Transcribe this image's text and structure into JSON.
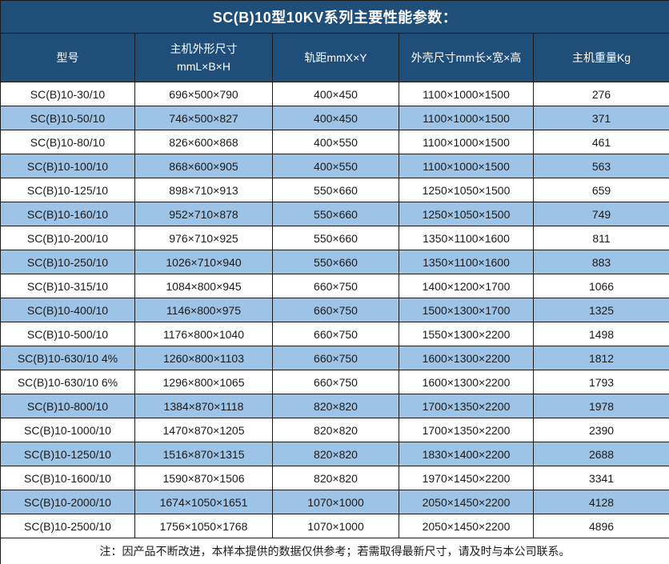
{
  "title": "SC(B)10型10KV系列主要性能参数：",
  "colors": {
    "header_bg": "#1F4E79",
    "alt_row_bg": "#9DC3E6",
    "row_bg": "#FFFFFF",
    "border": "#1A1A1A",
    "header_text": "#FFFFFF",
    "body_text": "#1A1A1A"
  },
  "table": {
    "headers": [
      {
        "label": "型号",
        "sub": ""
      },
      {
        "label": "主机外形尺寸",
        "sub": "mmL×B×H"
      },
      {
        "label": "轨距mmX×Y",
        "sub": ""
      },
      {
        "label": "外壳尺寸mm长×宽×高",
        "sub": ""
      },
      {
        "label": "主机重量Kg",
        "sub": ""
      }
    ],
    "rows": [
      [
        "SC(B)10-30/10",
        "696×500×790",
        "400×450",
        "1100×1000×1500",
        "276"
      ],
      [
        "SC(B)10-50/10",
        "746×500×827",
        "400×450",
        "1100×1000×1500",
        "371"
      ],
      [
        "SC(B)10-80/10",
        "826×600×868",
        "400×550",
        "1100×1000×1500",
        "461"
      ],
      [
        "SC(B)10-100/10",
        "868×600×905",
        "400×550",
        "1100×1000×1500",
        "563"
      ],
      [
        "SC(B)10-125/10",
        "898×710×913",
        "550×660",
        "1250×1050×1500",
        "659"
      ],
      [
        "SC(B)10-160/10",
        "952×710×878",
        "550×660",
        "1250×1050×1500",
        "749"
      ],
      [
        "SC(B)10-200/10",
        "976×710×925",
        "550×660",
        "1350×1100×1600",
        "811"
      ],
      [
        "SC(B)10-250/10",
        "1026×710×940",
        "550×660",
        "1350×1100×1600",
        "883"
      ],
      [
        "SC(B)10-315/10",
        "1084×800×945",
        "660×750",
        "1400×1200×1700",
        "1066"
      ],
      [
        "SC(B)10-400/10",
        "1146×800×975",
        "660×750",
        "1500×1300×1700",
        "1325"
      ],
      [
        "SC(B)10-500/10",
        "1176×800×1040",
        "660×750",
        "1550×1300×2200",
        "1498"
      ],
      [
        "SC(B)10-630/10 4%",
        "1260×800×1103",
        "660×750",
        "1600×1300×2200",
        "1812"
      ],
      [
        "SC(B)10-630/10 6%",
        "1296×800×1065",
        "660×750",
        "1600×1300×2200",
        "1793"
      ],
      [
        "SC(B)10-800/10",
        "1384×870×1118",
        "820×820",
        "1700×1350×2200",
        "1978"
      ],
      [
        "SC(B)10-1000/10",
        "1470×870×1205",
        "820×820",
        "1700×1350×2200",
        "2390"
      ],
      [
        "SC(B)10-1250/10",
        "1516×870×1315",
        "820×820",
        "1830×1400×2200",
        "2688"
      ],
      [
        "SC(B)10-1600/10",
        "1590×870×1506",
        "820×820",
        "1970×1450×2200",
        "3341"
      ],
      [
        "SC(B)10-2000/10",
        "1674×1050×1651",
        "1070×1000",
        "2050×1450×2200",
        "4128"
      ],
      [
        "SC(B)10-2500/10",
        "1756×1050×1768",
        "1070×1000",
        "2050×1450×2200",
        "4896"
      ]
    ],
    "note": "注：因产品不断改进，本样本提供的数据仅供参考；若需取得最新尺寸，请及时与本公司联系。"
  }
}
